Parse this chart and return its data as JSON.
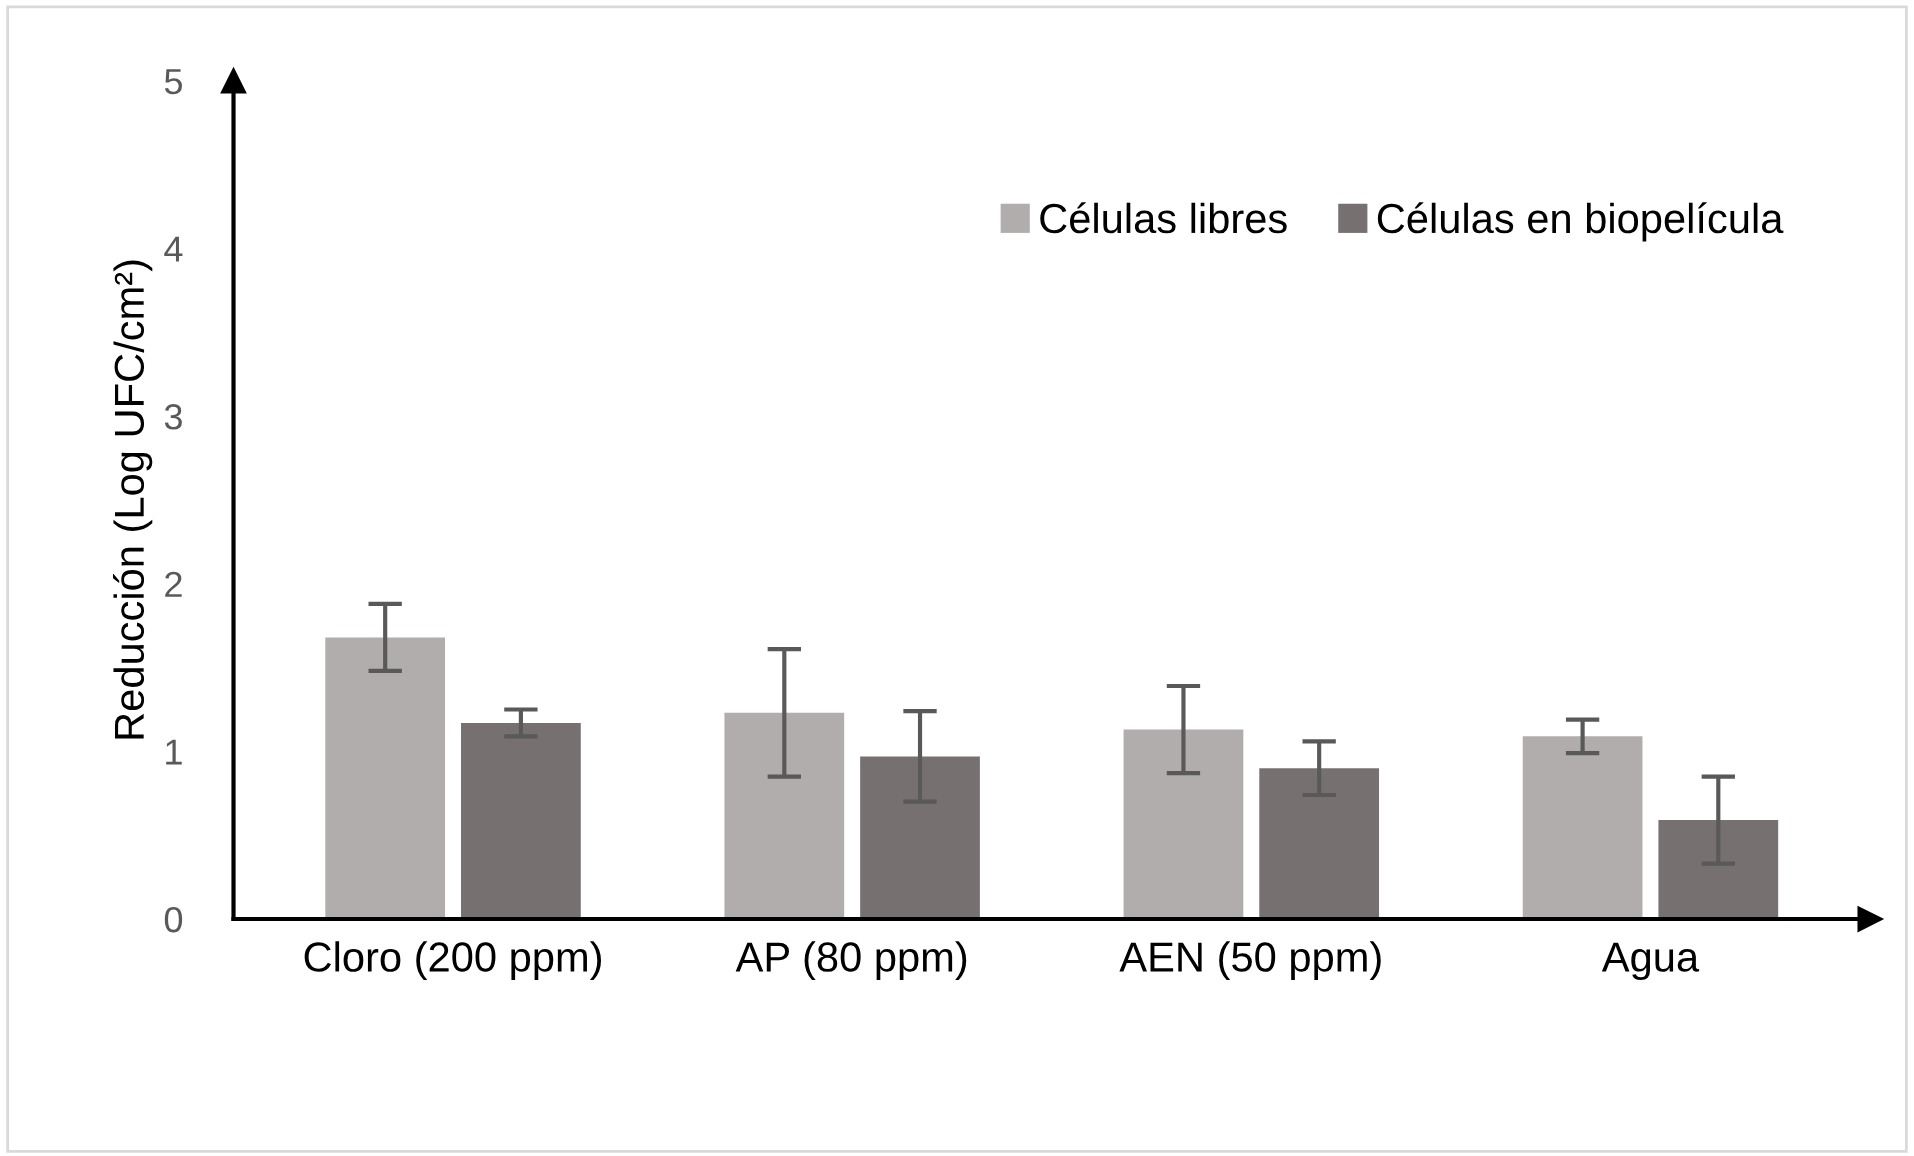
{
  "chart_data": {
    "type": "bar",
    "ylabel": "Reducción (Log UFC/cm²)",
    "categories": [
      "Cloro (200 ppm)",
      "AP (80 ppm)",
      "AEN (50 ppm)",
      "Agua"
    ],
    "series": [
      {
        "name": "Células libres",
        "color": "#b0adac",
        "values": [
          1.68,
          1.23,
          1.13,
          1.09
        ],
        "errors": [
          0.2,
          0.38,
          0.26,
          0.1
        ]
      },
      {
        "name": "Células en biopelícula",
        "color": "#767170",
        "values": [
          1.17,
          0.97,
          0.9,
          0.59
        ],
        "errors": [
          0.08,
          0.27,
          0.16,
          0.26
        ]
      }
    ],
    "ylim": [
      0,
      5
    ],
    "yticks": [
      0,
      1,
      2,
      3,
      4,
      5
    ],
    "grid": false,
    "legend": "top right"
  }
}
